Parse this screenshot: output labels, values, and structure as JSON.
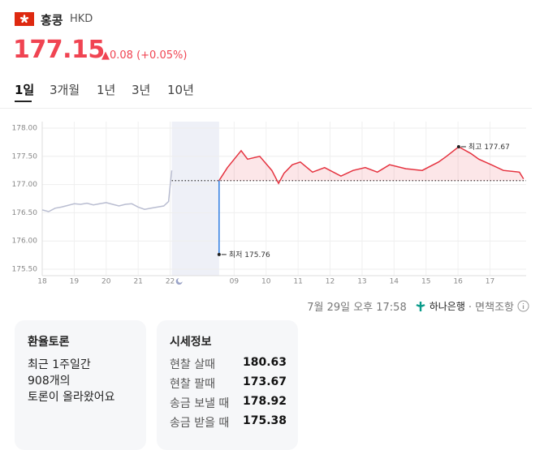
{
  "header": {
    "title": "홍콩",
    "currency": "HKD"
  },
  "price": {
    "value": "177.15",
    "change": "0.08",
    "change_pct": "(+0.05%)"
  },
  "tabs": [
    "1일",
    "3개월",
    "1년",
    "3년",
    "10년"
  ],
  "chart_data": {
    "type": "line",
    "xlim": [
      0,
      15.13
    ],
    "ylim": [
      175.5,
      178.0
    ],
    "yticks": [
      {
        "value": 175.5,
        "label": "175.50"
      },
      {
        "value": 176.0,
        "label": "176.00"
      },
      {
        "value": 176.5,
        "label": "176.50"
      },
      {
        "value": 177.0,
        "label": "177.00"
      },
      {
        "value": 177.5,
        "label": "177.50"
      },
      {
        "value": 178.0,
        "label": "178.00"
      }
    ],
    "xticks": [
      {
        "value": 0,
        "label": "18"
      },
      {
        "value": 1,
        "label": "19"
      },
      {
        "value": 2,
        "label": "20"
      },
      {
        "value": 3,
        "label": "21"
      },
      {
        "value": 4,
        "label": "22"
      },
      {
        "value": 6,
        "label": "09"
      },
      {
        "value": 7,
        "label": "10"
      },
      {
        "value": 8,
        "label": "11"
      },
      {
        "value": 9,
        "label": "12"
      },
      {
        "value": 10,
        "label": "13"
      },
      {
        "value": 11,
        "label": "14"
      },
      {
        "value": 12,
        "label": "15"
      },
      {
        "value": 13,
        "label": "16"
      },
      {
        "value": 14,
        "label": "17"
      }
    ],
    "grid": true,
    "baseline": 177.07,
    "series": [
      {
        "color": "#b9bdd1",
        "x": [
          0,
          0.2,
          0.4,
          0.6,
          0.8,
          1.0,
          1.2,
          1.4,
          1.6,
          1.8,
          2.0,
          2.2,
          2.4,
          2.6,
          2.8,
          3.0,
          3.2,
          3.4,
          3.6,
          3.8,
          3.95,
          4.05
        ],
        "values": [
          176.55,
          176.52,
          176.58,
          176.6,
          176.63,
          176.66,
          176.65,
          176.67,
          176.64,
          176.66,
          176.68,
          176.65,
          176.62,
          176.65,
          176.66,
          176.6,
          176.56,
          176.58,
          176.6,
          176.62,
          176.7,
          177.25
        ]
      },
      {
        "color": "#e5323f",
        "x": [
          5.53,
          5.79,
          6.22,
          6.42,
          6.8,
          7.18,
          7.39,
          7.56,
          7.82,
          8.07,
          8.45,
          8.83,
          9.34,
          9.72,
          10.1,
          10.48,
          10.86,
          11.37,
          11.88,
          12.39,
          12.64,
          13.02,
          13.4,
          13.65,
          14.04,
          14.42,
          14.92,
          15.05
        ],
        "values": [
          177.07,
          177.3,
          177.6,
          177.45,
          177.5,
          177.25,
          177.02,
          177.2,
          177.35,
          177.4,
          177.22,
          177.3,
          177.15,
          177.25,
          177.3,
          177.22,
          177.35,
          177.28,
          177.25,
          177.4,
          177.5,
          177.67,
          177.55,
          177.45,
          177.35,
          177.25,
          177.22,
          177.1
        ]
      }
    ],
    "annotations": [
      {
        "label": "최저",
        "value": 175.76,
        "x": 5.53,
        "color": "#2f7de1"
      },
      {
        "label": "최고",
        "value": 177.67,
        "x": 13.02,
        "color": "#333333"
      }
    ]
  },
  "footer": {
    "time": "7월 29일 오후 17:58",
    "bank": "하나은행",
    "disclaimer": "· 면책조항"
  },
  "cards": {
    "discussion": {
      "title": "환율토론",
      "lines": [
        "최근 1주일간",
        "908개의",
        "토론이 올라왔어요"
      ]
    },
    "rates": {
      "title": "시세정보",
      "rows": [
        [
          "현찰 살때",
          "180.63"
        ],
        [
          "현찰 팔때",
          "173.67"
        ],
        [
          "송금 보낼 때",
          "178.92"
        ],
        [
          "송금 받을 때",
          "175.38"
        ]
      ]
    }
  }
}
